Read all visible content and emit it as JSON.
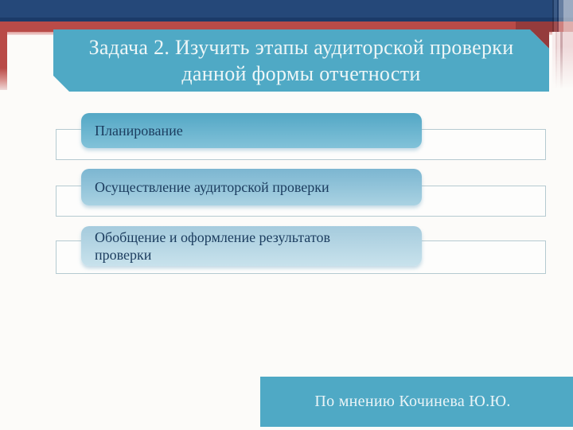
{
  "slide": {
    "title": "Задача 2. Изучить этапы аудиторской проверки данной формы отчетности",
    "stages": [
      "Планирование",
      "Осуществление аудиторской проверки",
      "Обобщение и оформление результатов проверки"
    ],
    "attribution": "По мнению Кочинева Ю.Ю.",
    "colors": {
      "top_bar": "#254879",
      "accent_bar": "#B94B48",
      "accent_underline": "#DE9B98",
      "corner_fold": "#953B3C",
      "title_box": "#4FA9C5",
      "attribution_box": "#4FA9C5",
      "title_text": "#EDF6F7",
      "stage_text": "#1B3C5E",
      "stage_fill_1_top": "#53A7C5",
      "stage_fill_1_bottom": "#82C2D9",
      "stage_fill_2_top": "#7CB6D1",
      "stage_fill_2_bottom": "#A9D2E2",
      "stage_fill_3_top": "#A5CBDD",
      "stage_fill_3_bottom": "#C8E2EC",
      "outline_border": "#B5CAD1"
    }
  }
}
